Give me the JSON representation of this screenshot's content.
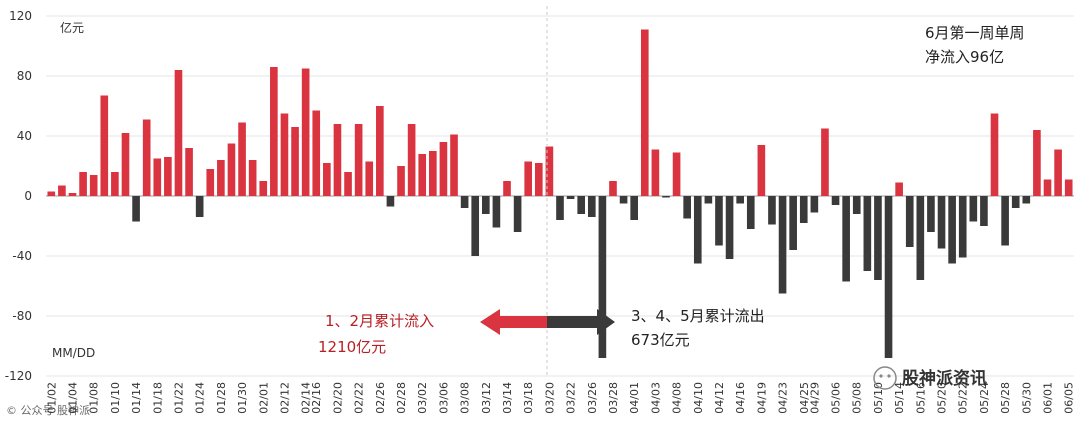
{
  "chart_data": {
    "type": "bar",
    "ylim": [
      -120,
      120
    ],
    "yticks": [
      -120,
      -80,
      -40,
      0,
      40,
      80,
      120
    ],
    "unit_label": "亿元",
    "xlabel": "MM/DD",
    "colors": {
      "positive": "#d9343f",
      "negative": "#3a3a3a",
      "annotation_red": "#b81f24"
    },
    "tick_labels": [
      "01/02",
      "01/04",
      "01/08",
      "01/10",
      "01/14",
      "01/18",
      "01/22",
      "01/24",
      "01/28",
      "01/30",
      "02/01",
      "02/12",
      "02/14",
      "02/16",
      "02/20",
      "02/22",
      "02/26",
      "02/28",
      "03/02",
      "03/06",
      "03/08",
      "03/12",
      "03/14",
      "03/18",
      "03/20",
      "03/22",
      "03/26",
      "03/28",
      "04/01",
      "04/03",
      "04/08",
      "04/10",
      "04/12",
      "04/16",
      "04/19",
      "04/23",
      "04/25",
      "04/29",
      "05/06",
      "05/08",
      "05/10",
      "05/14",
      "05/16",
      "05/20",
      "05/22",
      "05/24",
      "05/28",
      "05/30",
      "06/01",
      "06/05"
    ],
    "values": [
      3,
      7,
      2,
      16,
      14,
      67,
      16,
      42,
      -17,
      51,
      25,
      26,
      84,
      32,
      -14,
      18,
      24,
      35,
      49,
      24,
      10,
      86,
      55,
      46,
      85,
      57,
      22,
      48,
      16,
      48,
      23,
      60,
      -7,
      20,
      48,
      28,
      30,
      36,
      41,
      -8,
      -40,
      -12,
      -21,
      10,
      -24,
      23,
      22,
      33,
      -16,
      -2,
      -12,
      -14,
      -108,
      10,
      -5,
      -16,
      111,
      31,
      -1,
      29,
      -15,
      -45,
      -5,
      -33,
      -42,
      -5,
      -22,
      34,
      -19,
      -65,
      -36,
      -18,
      -11,
      45,
      -6,
      -57,
      -12,
      -50,
      -56,
      -108,
      9,
      -34,
      -56,
      -24,
      -35,
      -45,
      -41,
      -17,
      -20,
      55,
      -33,
      -8,
      -5,
      44,
      11,
      31,
      11
    ],
    "annotations": {
      "top_right_line1": "6月第一周单周",
      "top_right_line2": "净流入96亿",
      "left_line1": "1、2月累计流入",
      "left_line2": "1210亿元",
      "right_line1": "3、4、5月累计流出",
      "right_line2": "673亿元"
    },
    "watermark_left": "© 公众号 股神派",
    "watermark_right": "股神派资讯"
  }
}
